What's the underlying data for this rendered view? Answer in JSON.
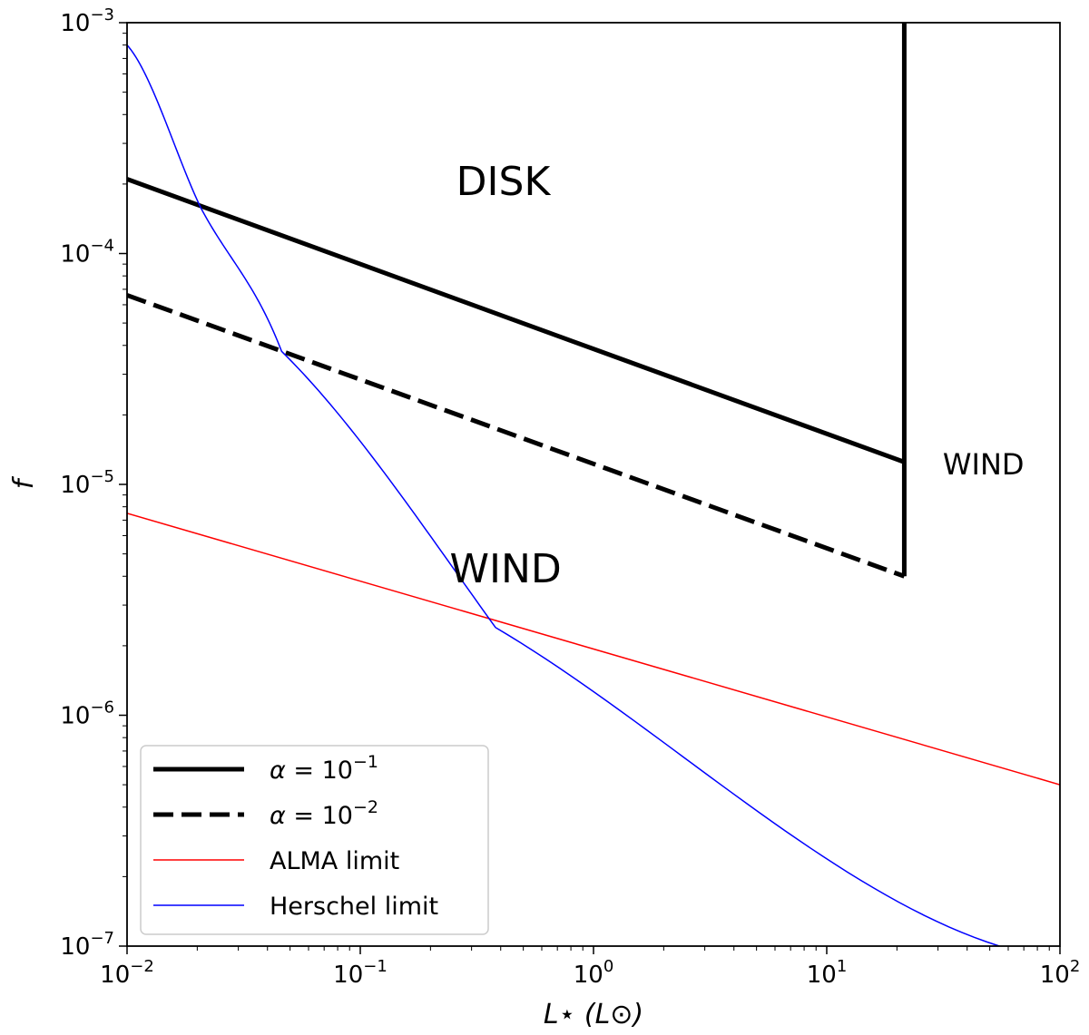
{
  "chart_data": {
    "type": "line",
    "title": "",
    "xlabel": "L⋆ (L⊙)",
    "ylabel": "f",
    "xscale": "log",
    "yscale": "log",
    "xlim": [
      0.01,
      100
    ],
    "ylim": [
      1e-07,
      0.001
    ],
    "x_ticks": [
      {
        "base": "10",
        "exp": "−2"
      },
      {
        "base": "10",
        "exp": "−1"
      },
      {
        "base": "10",
        "exp": "0"
      },
      {
        "base": "10",
        "exp": "1"
      },
      {
        "base": "10",
        "exp": "2"
      }
    ],
    "y_ticks": [
      {
        "base": "10",
        "exp": "−7"
      },
      {
        "base": "10",
        "exp": "−6"
      },
      {
        "base": "10",
        "exp": "−5"
      },
      {
        "base": "10",
        "exp": "−4"
      },
      {
        "base": "10",
        "exp": "−3"
      }
    ],
    "series": [
      {
        "name": "alpha-1",
        "label": "α = 10",
        "label_exp": "−1",
        "color": "#000000",
        "style": "solid",
        "width": 5,
        "x": [
          0.01,
          21.5
        ],
        "y": [
          0.00021,
          1.25e-05
        ]
      },
      {
        "name": "alpha-2",
        "label": "α = 10",
        "label_exp": "−2",
        "color": "#000000",
        "style": "dashed",
        "width": 5,
        "x": [
          0.01,
          21.5
        ],
        "y": [
          6.6e-05,
          4e-06
        ]
      },
      {
        "name": "alma",
        "label": "ALMA limit",
        "color": "#ff0000",
        "style": "solid",
        "width": 1.5,
        "x": [
          0.01,
          100
        ],
        "y": [
          7.5e-06,
          5e-07
        ]
      },
      {
        "name": "herschel",
        "label": "Herschel limit",
        "color": "#0000ff",
        "style": "solid",
        "width": 1.5,
        "x": [
          0.01,
          0.0207,
          0.046,
          0.38,
          55
        ],
        "y": [
          0.0008,
          0.000158,
          3.77e-05,
          2.4e-06,
          1e-07
        ]
      }
    ],
    "boundary": {
      "x": 21.5,
      "y_from": 4e-06,
      "y_to": 0.001,
      "color": "#000000"
    },
    "annotations": [
      {
        "name": "disk-label",
        "text": "DISK",
        "x": 0.41,
        "y": 0.0002,
        "size": 44
      },
      {
        "name": "wind-label-lower",
        "text": "WIND",
        "x": 0.42,
        "y": 4.2e-06,
        "size": 44
      },
      {
        "name": "wind-label-right",
        "text": "WIND",
        "x": 47,
        "y": 1.2e-05,
        "size": 32
      }
    ],
    "legend": {
      "position": "lower-left"
    }
  }
}
